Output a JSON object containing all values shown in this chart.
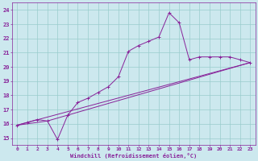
{
  "xlabel": "Windchill (Refroidissement éolien,°C)",
  "bg_color": "#cce8ee",
  "line_color": "#882299",
  "grid_color": "#99cccc",
  "xlim": [
    -0.5,
    23.5
  ],
  "ylim": [
    14.5,
    24.5
  ],
  "xticks": [
    0,
    1,
    2,
    3,
    4,
    5,
    6,
    7,
    8,
    9,
    10,
    11,
    12,
    13,
    14,
    15,
    16,
    17,
    18,
    19,
    20,
    21,
    22,
    23
  ],
  "yticks": [
    15,
    16,
    17,
    18,
    19,
    20,
    21,
    22,
    23,
    24
  ],
  "series1_x": [
    0,
    1,
    2,
    3,
    4,
    5,
    6,
    7,
    8,
    9,
    10,
    11,
    12,
    13,
    14,
    15,
    16,
    17,
    18,
    19,
    20,
    21,
    22,
    23
  ],
  "series1_y": [
    15.9,
    16.1,
    16.3,
    16.2,
    14.9,
    16.6,
    17.5,
    17.8,
    18.2,
    18.6,
    19.3,
    21.1,
    21.5,
    21.8,
    22.1,
    23.8,
    23.1,
    20.5,
    20.7,
    20.7,
    20.7,
    20.7,
    20.5,
    20.3
  ],
  "series2_x": [
    0,
    23
  ],
  "series2_y": [
    15.9,
    20.3
  ],
  "series3_x": [
    0,
    3,
    23
  ],
  "series3_y": [
    15.9,
    16.2,
    20.3
  ],
  "tick_fontsize": 4.5,
  "xlabel_fontsize": 5.0
}
